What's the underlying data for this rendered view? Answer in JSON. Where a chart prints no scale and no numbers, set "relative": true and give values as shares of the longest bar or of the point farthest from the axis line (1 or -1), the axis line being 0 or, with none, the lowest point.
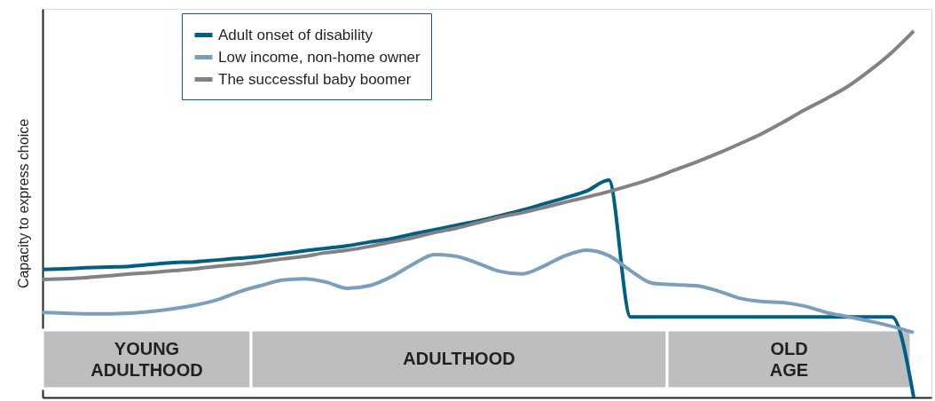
{
  "chart_data": {
    "type": "line",
    "relative": true,
    "ylabel": "Capacity to express choice",
    "tick_labels": false,
    "grid": false,
    "legend": "top left",
    "marker": "none",
    "line_style": "solid",
    "categories": [
      null,
      null,
      null,
      null,
      null,
      null,
      null,
      null,
      null,
      null,
      null,
      null,
      null,
      null,
      null,
      null,
      null,
      null,
      null,
      null,
      null,
      null,
      null,
      null,
      null,
      null,
      null,
      null,
      null,
      null,
      null,
      null,
      null,
      null,
      null,
      null,
      null,
      null,
      null,
      null,
      null
    ],
    "series": [
      {
        "name": "Adult onset of disability",
        "color": "#005f83",
        "values": [
          0.349,
          0.351,
          0.354,
          0.356,
          0.358,
          0.363,
          0.368,
          0.37,
          0.375,
          0.38,
          0.385,
          0.392,
          0.4,
          0.407,
          0.414,
          0.424,
          0.433,
          0.446,
          0.458,
          0.47,
          0.482,
          0.496,
          0.511,
          0.528,
          0.545,
          0.564,
          0.593,
          0.22,
          0.22,
          0.22,
          0.22,
          0.22,
          0.22,
          0.22,
          0.22,
          0.22,
          0.22,
          0.22,
          0.22,
          0.22,
          0
        ]
      },
      {
        "name": "Low income, non-home owner",
        "color": "#7a9fbd",
        "values": [
          0.232,
          0.23,
          0.228,
          0.228,
          0.23,
          0.235,
          0.242,
          0.252,
          0.266,
          0.288,
          0.305,
          0.32,
          0.324,
          0.315,
          0.298,
          0.305,
          0.329,
          0.363,
          0.39,
          0.385,
          0.366,
          0.344,
          0.337,
          0.358,
          0.387,
          0.402,
          0.387,
          0.346,
          0.312,
          0.308,
          0.305,
          0.291,
          0.271,
          0.262,
          0.259,
          0.249,
          0.232,
          0.22,
          0.208,
          0.194,
          0.177
        ]
      },
      {
        "name": "The successful baby boomer",
        "color": "#808285",
        "values": [
          0.322,
          0.324,
          0.327,
          0.332,
          0.337,
          0.341,
          0.346,
          0.351,
          0.358,
          0.363,
          0.37,
          0.378,
          0.385,
          0.395,
          0.402,
          0.412,
          0.424,
          0.436,
          0.45,
          0.462,
          0.477,
          0.492,
          0.504,
          0.518,
          0.533,
          0.547,
          0.562,
          0.579,
          0.598,
          0.62,
          0.642,
          0.666,
          0.692,
          0.719,
          0.751,
          0.785,
          0.816,
          0.85,
          0.893,
          0.942,
          1.0
        ]
      }
    ],
    "annotations": [
      "YOUNG ADULTHOOD",
      "ADULTHOOD",
      "OLD AGE"
    ]
  }
}
